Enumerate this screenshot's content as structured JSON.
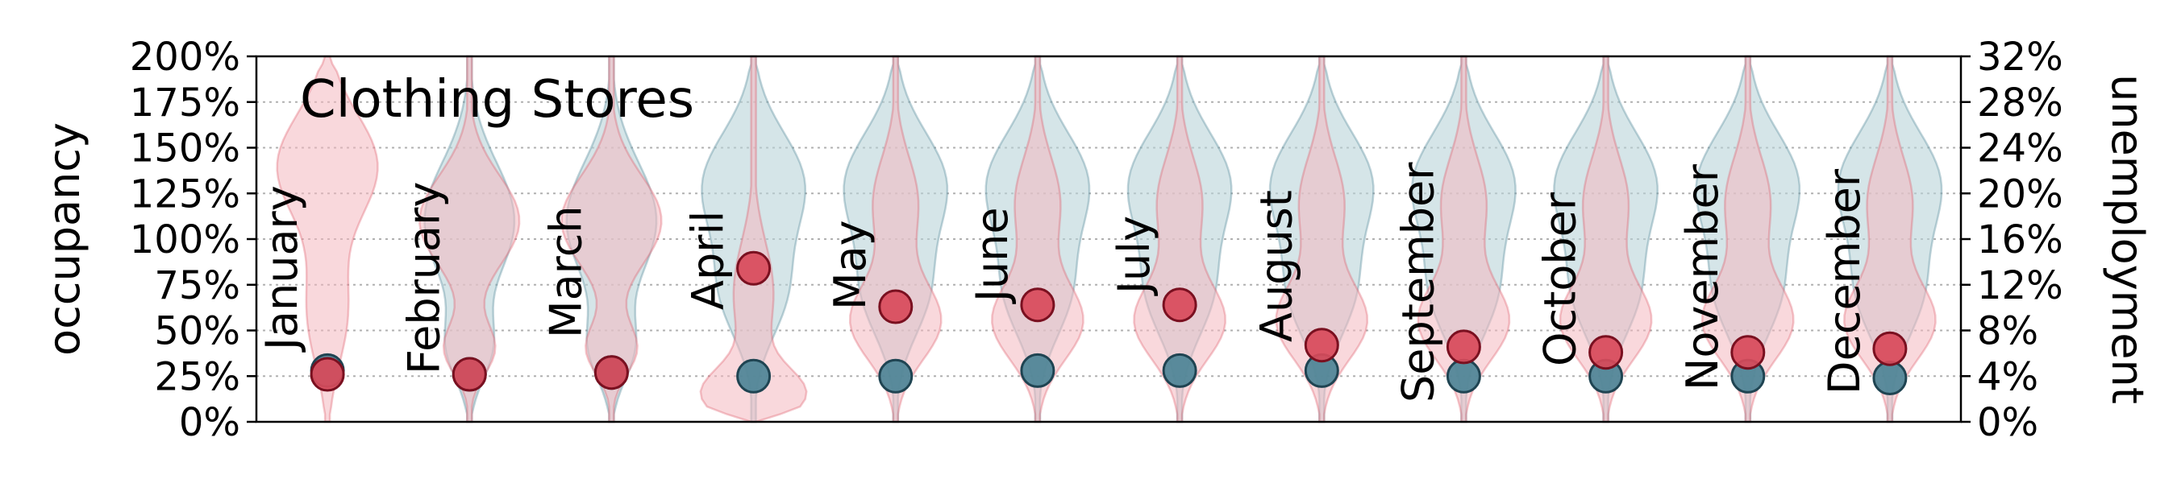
{
  "chart_data": {
    "type": "violin",
    "title": "Clothing Stores",
    "left_axis": {
      "label": "occupancy",
      "range": [
        0,
        200
      ],
      "ticks": [
        "0%",
        "25%",
        "50%",
        "75%",
        "100%",
        "125%",
        "150%",
        "175%",
        "200%"
      ]
    },
    "right_axis": {
      "label": "unemployment",
      "range": [
        0,
        32
      ],
      "ticks": [
        "0%",
        "4%",
        "8%",
        "12%",
        "16%",
        "20%",
        "24%",
        "28%",
        "32%"
      ]
    },
    "grid": "horizontal-dotted",
    "categories": [
      "January",
      "February",
      "March",
      "April",
      "May",
      "June",
      "July",
      "August",
      "September",
      "October",
      "November",
      "December"
    ],
    "series": [
      {
        "color": "#d94a5a",
        "point_values": [
          26,
          26,
          27,
          84,
          63,
          64,
          64,
          42,
          41,
          38,
          38,
          40
        ]
      },
      {
        "color": "#4d8496",
        "point_values": [
          28,
          26,
          27,
          25,
          25,
          28,
          28,
          28,
          25,
          25,
          25,
          24
        ]
      }
    ],
    "colors": {
      "red": "#d94a5a",
      "teal": "#4d8496",
      "red_fill": "#f4b8c0",
      "teal_fill": "#b9d4d9"
    }
  }
}
